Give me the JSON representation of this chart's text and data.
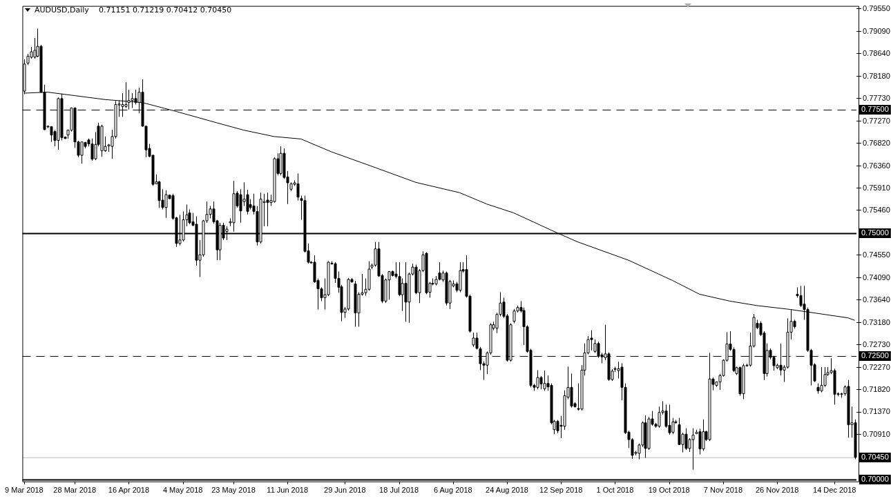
{
  "chart_data": {
    "type": "candlestick",
    "title": "AUDUSD,Daily",
    "subtitle": "0.71151 0.71219 0.70412 0.70450",
    "categories": [
      "9 Mar 2018",
      null,
      null,
      null,
      null,
      null,
      null,
      null,
      null,
      null,
      null,
      null,
      null,
      null,
      null,
      "28 Mar 2018",
      null,
      null,
      null,
      null,
      null,
      null,
      null,
      null,
      null,
      null,
      null,
      null,
      null,
      null,
      null,
      "16 Apr 2018",
      null,
      null,
      null,
      null,
      null,
      null,
      null,
      null,
      null,
      null,
      null,
      null,
      null,
      null,
      null,
      "4 May 2018",
      null,
      null,
      null,
      null,
      null,
      null,
      null,
      null,
      null,
      null,
      null,
      null,
      null,
      null,
      "23 May 2018",
      null,
      null,
      null,
      null,
      null,
      null,
      null,
      null,
      null,
      null,
      null,
      null,
      null,
      null,
      null,
      "11 Jun 2018",
      null,
      null,
      null,
      null,
      null,
      null,
      null,
      null,
      null,
      null,
      null,
      null,
      null,
      null,
      null,
      null,
      "29 Jun 2018",
      null,
      null,
      null,
      null,
      null,
      null,
      null,
      null,
      null,
      null,
      null,
      null,
      null,
      null,
      null,
      "18 Jul 2018",
      null,
      null,
      null,
      null,
      null,
      null,
      null,
      null,
      null,
      null,
      null,
      null,
      null,
      null,
      null,
      "6 Aug 2018",
      null,
      null,
      null,
      null,
      null,
      null,
      null,
      null,
      null,
      null,
      null,
      null,
      null,
      null,
      null,
      "24 Aug 2018",
      null,
      null,
      null,
      null,
      null,
      null,
      null,
      null,
      null,
      null,
      null,
      null,
      null,
      null,
      null,
      "12 Sep 2018",
      null,
      null,
      null,
      null,
      null,
      null,
      null,
      null,
      null,
      null,
      null,
      null,
      null,
      null,
      null,
      "1 Oct 2018",
      null,
      null,
      null,
      null,
      null,
      null,
      null,
      null,
      null,
      null,
      null,
      null,
      null,
      null,
      null,
      "19 Oct 2018",
      null,
      null,
      null,
      null,
      null,
      null,
      null,
      null,
      null,
      null,
      null,
      null,
      null,
      null,
      null,
      "7 Nov 2018",
      null,
      null,
      null,
      null,
      null,
      null,
      null,
      null,
      null,
      null,
      null,
      null,
      null,
      null,
      null,
      "26 Nov 2018",
      null,
      null,
      null,
      null,
      null,
      null,
      null,
      null,
      null,
      null,
      null,
      null,
      null,
      null,
      null,
      null,
      "14 Dec 2018",
      null,
      null,
      null,
      null,
      null,
      null
    ],
    "ohlc": [
      [
        0.7788,
        0.7853,
        0.7782,
        0.7843
      ],
      [
        0.7845,
        0.7864,
        0.7841,
        0.7859
      ],
      [
        0.7857,
        0.7878,
        0.7854,
        0.7868
      ],
      [
        0.7857,
        0.7896,
        0.7854,
        0.7871
      ],
      [
        0.7859,
        0.7915,
        0.7857,
        0.7879
      ],
      [
        0.7879,
        0.7882,
        0.7784,
        0.7786
      ],
      [
        0.7786,
        0.7801,
        0.7709,
        0.771
      ],
      [
        0.7716,
        0.7718,
        0.7713,
        0.7717
      ],
      [
        0.7716,
        0.7717,
        0.7685,
        0.7699
      ],
      [
        0.7706,
        0.7709,
        0.7676,
        0.7688
      ],
      [
        0.7688,
        0.7775,
        0.7669,
        0.7773
      ],
      [
        0.7773,
        0.7783,
        0.7688,
        0.7694
      ],
      [
        0.7695,
        0.7696,
        0.7691,
        0.7692
      ],
      [
        0.7699,
        0.771,
        0.7692,
        0.7709
      ],
      [
        0.7709,
        0.7755,
        0.7706,
        0.7754
      ],
      [
        0.7754,
        0.7755,
        0.7673,
        0.7685
      ],
      [
        0.7685,
        0.7687,
        0.7654,
        0.7658
      ],
      [
        0.7658,
        0.7685,
        0.7641,
        0.7685
      ],
      [
        0.7684,
        0.7685,
        0.7672,
        0.7676
      ],
      [
        0.7689,
        0.7692,
        0.7676,
        0.7681
      ],
      [
        0.7681,
        0.7692,
        0.7647,
        0.765
      ],
      [
        0.7651,
        0.7705,
        0.7648,
        0.768
      ],
      [
        0.7717,
        0.7724,
        0.7676,
        0.768
      ],
      [
        0.7667,
        0.772,
        0.7655,
        0.7717
      ],
      [
        0.7667,
        0.7696,
        0.7665,
        0.7676
      ],
      [
        0.7677,
        0.7681,
        0.7665,
        0.7679
      ],
      [
        0.7676,
        0.771,
        0.7651,
        0.7696
      ],
      [
        0.7696,
        0.7768,
        0.7692,
        0.7761
      ],
      [
        0.776,
        0.7769,
        0.7736,
        0.7762
      ],
      [
        0.7757,
        0.7784,
        0.7736,
        0.7761
      ],
      [
        0.7757,
        0.7806,
        0.7754,
        0.7761
      ],
      [
        0.7765,
        0.7791,
        0.7751,
        0.7769
      ],
      [
        0.7769,
        0.7784,
        0.7754,
        0.7773
      ],
      [
        0.7773,
        0.7791,
        0.7761,
        0.7765
      ],
      [
        0.7765,
        0.7795,
        0.7743,
        0.7786
      ],
      [
        0.7786,
        0.7812,
        0.7716,
        0.7717
      ],
      [
        0.7717,
        0.7718,
        0.7654,
        0.7669
      ],
      [
        0.7672,
        0.7681,
        0.7654,
        0.7656
      ],
      [
        0.7658,
        0.7659,
        0.7596,
        0.7599
      ],
      [
        0.76,
        0.7619,
        0.7599,
        0.7604
      ],
      [
        0.7604,
        0.7606,
        0.7551,
        0.7566
      ],
      [
        0.7567,
        0.7589,
        0.7548,
        0.7552
      ],
      [
        0.7552,
        0.7587,
        0.7531,
        0.7578
      ],
      [
        0.7577,
        0.7578,
        0.7569,
        0.757
      ],
      [
        0.7576,
        0.758,
        0.7527,
        0.753
      ],
      [
        0.7531,
        0.7533,
        0.7472,
        0.7479
      ],
      [
        0.7479,
        0.7537,
        0.7475,
        0.7486
      ],
      [
        0.7486,
        0.7544,
        0.7483,
        0.7527
      ],
      [
        0.7527,
        0.7558,
        0.7514,
        0.7537
      ],
      [
        0.7541,
        0.7548,
        0.7518,
        0.7521
      ],
      [
        0.7523,
        0.7541,
        0.7514,
        0.7516
      ],
      [
        0.7518,
        0.7534,
        0.7434,
        0.7445
      ],
      [
        0.7445,
        0.7486,
        0.7411,
        0.7456
      ],
      [
        0.7456,
        0.7527,
        0.7452,
        0.7525
      ],
      [
        0.7525,
        0.7564,
        0.7521,
        0.7538
      ],
      [
        0.7538,
        0.7555,
        0.753,
        0.7549
      ],
      [
        0.7549,
        0.7564,
        0.7519,
        0.7523
      ],
      [
        0.7525,
        0.7527,
        0.7445,
        0.7466
      ],
      [
        0.7466,
        0.7521,
        0.7445,
        0.7516
      ],
      [
        0.7516,
        0.7521,
        0.7486,
        0.749
      ],
      [
        0.7503,
        0.7514,
        0.7486,
        0.7508
      ],
      [
        0.7521,
        0.753,
        0.7514,
        0.7523
      ],
      [
        0.7521,
        0.7606,
        0.7503,
        0.758
      ],
      [
        0.7581,
        0.7585,
        0.7552,
        0.7555
      ],
      [
        0.7578,
        0.7589,
        0.7521,
        0.7545
      ],
      [
        0.7564,
        0.7603,
        0.7555,
        0.7569
      ],
      [
        0.7578,
        0.7588,
        0.7538,
        0.7544
      ],
      [
        0.7558,
        0.7569,
        0.7548,
        0.7552
      ],
      [
        0.7555,
        0.758,
        0.7538,
        0.7544
      ],
      [
        0.7544,
        0.7555,
        0.7475,
        0.7482
      ],
      [
        0.7482,
        0.7582,
        0.7479,
        0.7569
      ],
      [
        0.7562,
        0.758,
        0.7514,
        0.7564
      ],
      [
        0.7567,
        0.7582,
        0.7514,
        0.7562
      ],
      [
        0.7562,
        0.7578,
        0.7555,
        0.7566
      ],
      [
        0.7564,
        0.7654,
        0.7562,
        0.7651
      ],
      [
        0.7651,
        0.7662,
        0.7617,
        0.7621
      ],
      [
        0.7621,
        0.7676,
        0.7617,
        0.7662
      ],
      [
        0.7662,
        0.7672,
        0.761,
        0.7613
      ],
      [
        0.7614,
        0.7626,
        0.7559,
        0.7602
      ],
      [
        0.7589,
        0.7603,
        0.7585,
        0.76
      ],
      [
        0.7599,
        0.7607,
        0.7596,
        0.7602
      ],
      [
        0.76,
        0.7621,
        0.7566,
        0.7573
      ],
      [
        0.757,
        0.7576,
        0.7527,
        0.7566
      ],
      [
        0.7566,
        0.7576,
        0.7461,
        0.7463
      ],
      [
        0.7464,
        0.7479,
        0.7438,
        0.7441
      ],
      [
        0.7441,
        0.7443,
        0.7438,
        0.744
      ],
      [
        0.7441,
        0.7455,
        0.7399,
        0.7401
      ],
      [
        0.7404,
        0.7408,
        0.7345,
        0.7387
      ],
      [
        0.7387,
        0.739,
        0.7362,
        0.7369
      ],
      [
        0.7369,
        0.7408,
        0.7345,
        0.7375
      ],
      [
        0.7375,
        0.7443,
        0.7372,
        0.7441
      ],
      [
        0.7439,
        0.7443,
        0.7436,
        0.7438
      ],
      [
        0.7438,
        0.7441,
        0.7399,
        0.7408
      ],
      [
        0.7408,
        0.7422,
        0.7379,
        0.739
      ],
      [
        0.7391,
        0.7395,
        0.7321,
        0.7339
      ],
      [
        0.7339,
        0.735,
        0.7328,
        0.7346
      ],
      [
        0.7346,
        0.7409,
        0.7343,
        0.7406
      ],
      [
        0.7406,
        0.7409,
        0.7399,
        0.7401
      ],
      [
        0.7397,
        0.7403,
        0.731,
        0.7338
      ],
      [
        0.7338,
        0.738,
        0.731,
        0.7376
      ],
      [
        0.7376,
        0.7417,
        0.7373,
        0.7379
      ],
      [
        0.7379,
        0.7408,
        0.7373,
        0.7386
      ],
      [
        0.7386,
        0.7443,
        0.7383,
        0.7427
      ],
      [
        0.7431,
        0.7438,
        0.7427,
        0.7435
      ],
      [
        0.7435,
        0.7482,
        0.7432,
        0.7468
      ],
      [
        0.7468,
        0.7482,
        0.7411,
        0.7413
      ],
      [
        0.7414,
        0.7417,
        0.7358,
        0.7362
      ],
      [
        0.7362,
        0.7408,
        0.7358,
        0.7405
      ],
      [
        0.7405,
        0.7423,
        0.7365,
        0.7422
      ],
      [
        0.7422,
        0.7424,
        0.7412,
        0.7414
      ],
      [
        0.7417,
        0.7441,
        0.7408,
        0.7412
      ],
      [
        0.7412,
        0.7441,
        0.7372,
        0.7375
      ],
      [
        0.7375,
        0.7408,
        0.7342,
        0.7398
      ],
      [
        0.7398,
        0.7441,
        0.732,
        0.736
      ],
      [
        0.736,
        0.742,
        0.7318,
        0.7417
      ],
      [
        0.7417,
        0.7438,
        0.7414,
        0.7431
      ],
      [
        0.7431,
        0.7436,
        0.7376,
        0.7379
      ],
      [
        0.7379,
        0.7427,
        0.7358,
        0.7424
      ],
      [
        0.7424,
        0.7463,
        0.7421,
        0.7456
      ],
      [
        0.7459,
        0.7461,
        0.7376,
        0.7379
      ],
      [
        0.738,
        0.7401,
        0.7369,
        0.7398
      ],
      [
        0.7398,
        0.7408,
        0.7394,
        0.7397
      ],
      [
        0.7397,
        0.7413,
        0.7394,
        0.7406
      ],
      [
        0.7419,
        0.7441,
        0.7404,
        0.7406
      ],
      [
        0.7405,
        0.7424,
        0.7401,
        0.7419
      ],
      [
        0.7419,
        0.7422,
        0.7353,
        0.7358
      ],
      [
        0.7358,
        0.7405,
        0.7346,
        0.7402
      ],
      [
        0.7393,
        0.7404,
        0.739,
        0.7397
      ],
      [
        0.7397,
        0.7401,
        0.738,
        0.7384
      ],
      [
        0.7384,
        0.7441,
        0.738,
        0.7424
      ],
      [
        0.7426,
        0.7441,
        0.742,
        0.7423
      ],
      [
        0.7426,
        0.7455,
        0.7369,
        0.7372
      ],
      [
        0.7372,
        0.7375,
        0.7298,
        0.7301
      ],
      [
        0.7273,
        0.7298,
        0.7269,
        0.7287
      ],
      [
        0.7287,
        0.7298,
        0.7264,
        0.7266
      ],
      [
        0.7265,
        0.7269,
        0.7222,
        0.7235
      ],
      [
        0.7235,
        0.724,
        0.7202,
        0.7232
      ],
      [
        0.7232,
        0.726,
        0.7214,
        0.7257
      ],
      [
        0.7257,
        0.7317,
        0.7253,
        0.7314
      ],
      [
        0.7307,
        0.732,
        0.7303,
        0.7314
      ],
      [
        0.7307,
        0.7338,
        0.7297,
        0.7335
      ],
      [
        0.7335,
        0.738,
        0.7331,
        0.7358
      ],
      [
        0.736,
        0.7369,
        0.7328,
        0.7331
      ],
      [
        0.7332,
        0.7336,
        0.7239,
        0.7242
      ],
      [
        0.7242,
        0.7317,
        0.7239,
        0.7314
      ],
      [
        0.7321,
        0.7346,
        0.7317,
        0.7342
      ],
      [
        0.7342,
        0.7353,
        0.7339,
        0.7349
      ],
      [
        0.7349,
        0.7362,
        0.7339,
        0.7342
      ],
      [
        0.7343,
        0.7349,
        0.7273,
        0.731
      ],
      [
        0.731,
        0.7313,
        0.7257,
        0.726
      ],
      [
        0.7262,
        0.7265,
        0.7187,
        0.7191
      ],
      [
        0.7191,
        0.7194,
        0.718,
        0.7187
      ],
      [
        0.7187,
        0.7222,
        0.7183,
        0.7207
      ],
      [
        0.7207,
        0.721,
        0.7183,
        0.7194
      ],
      [
        0.7184,
        0.7221,
        0.718,
        0.7195
      ],
      [
        0.7195,
        0.7211,
        0.718,
        0.7188
      ],
      [
        0.7191,
        0.7195,
        0.7112,
        0.7115
      ],
      [
        0.7101,
        0.7121,
        0.7092,
        0.7118
      ],
      [
        0.7118,
        0.7121,
        0.7094,
        0.7099
      ],
      [
        0.711,
        0.7129,
        0.7084,
        0.7108
      ],
      [
        0.7108,
        0.7181,
        0.7101,
        0.717
      ],
      [
        0.7167,
        0.7229,
        0.7163,
        0.7187
      ],
      [
        0.7187,
        0.7215,
        0.7146,
        0.7149
      ],
      [
        0.7154,
        0.7157,
        0.7146,
        0.7148
      ],
      [
        0.7144,
        0.7195,
        0.714,
        0.7143
      ],
      [
        0.7143,
        0.7232,
        0.714,
        0.7222
      ],
      [
        0.7222,
        0.7276,
        0.7211,
        0.7257
      ],
      [
        0.7257,
        0.7291,
        0.7254,
        0.7284
      ],
      [
        0.7287,
        0.7303,
        0.7262,
        0.7284
      ],
      [
        0.726,
        0.7284,
        0.7257,
        0.7276
      ],
      [
        0.7276,
        0.728,
        0.7247,
        0.725
      ],
      [
        0.7253,
        0.7257,
        0.7236,
        0.7249
      ],
      [
        0.7247,
        0.7314,
        0.7242,
        0.7255
      ],
      [
        0.7255,
        0.7258,
        0.72,
        0.7203
      ],
      [
        0.7203,
        0.7224,
        0.72,
        0.722
      ],
      [
        0.7225,
        0.7229,
        0.7218,
        0.7224
      ],
      [
        0.7221,
        0.7239,
        0.7205,
        0.7225
      ],
      [
        0.7228,
        0.7236,
        0.7161,
        0.7187
      ],
      [
        0.7187,
        0.7195,
        0.7092,
        0.7095
      ],
      [
        0.7096,
        0.7099,
        0.7064,
        0.7081
      ],
      [
        0.7081,
        0.7084,
        0.7042,
        0.7049
      ],
      [
        0.7053,
        0.7058,
        0.7049,
        0.7055
      ],
      [
        0.7053,
        0.7073,
        0.7041,
        0.707
      ],
      [
        0.707,
        0.7118,
        0.7066,
        0.7115
      ],
      [
        0.7115,
        0.713,
        0.7044,
        0.7063
      ],
      [
        0.7063,
        0.7127,
        0.706,
        0.7123
      ],
      [
        0.7123,
        0.7139,
        0.7109,
        0.7112
      ],
      [
        0.7112,
        0.7115,
        0.7105,
        0.7108
      ],
      [
        0.7108,
        0.7148,
        0.7105,
        0.7136
      ],
      [
        0.7136,
        0.7159,
        0.7132,
        0.7139
      ],
      [
        0.7139,
        0.7152,
        0.7105,
        0.7108
      ],
      [
        0.711,
        0.7152,
        0.7091,
        0.7095
      ],
      [
        0.7096,
        0.7125,
        0.7092,
        0.7117
      ],
      [
        0.7117,
        0.7121,
        0.7113,
        0.7117
      ],
      [
        0.7111,
        0.7125,
        0.707,
        0.7071
      ],
      [
        0.7071,
        0.7095,
        0.7055,
        0.7092
      ],
      [
        0.7092,
        0.7104,
        0.706,
        0.7063
      ],
      [
        0.7063,
        0.7084,
        0.7056,
        0.7081
      ],
      [
        0.7081,
        0.7104,
        0.702,
        0.709
      ],
      [
        0.7093,
        0.7101,
        0.7092,
        0.7096
      ],
      [
        0.7097,
        0.7103,
        0.7051,
        0.7062
      ],
      [
        0.7062,
        0.7122,
        0.7058,
        0.7097
      ],
      [
        0.7097,
        0.7099,
        0.7078,
        0.7081
      ],
      [
        0.7081,
        0.7257,
        0.7078,
        0.7204
      ],
      [
        0.7204,
        0.7207,
        0.7181,
        0.7193
      ],
      [
        0.7191,
        0.7199,
        0.7188,
        0.7198
      ],
      [
        0.7198,
        0.7214,
        0.7182,
        0.7211
      ],
      [
        0.7211,
        0.7244,
        0.7209,
        0.7242
      ],
      [
        0.7242,
        0.7299,
        0.7239,
        0.7275
      ],
      [
        0.7275,
        0.7301,
        0.7261,
        0.7264
      ],
      [
        0.7264,
        0.7268,
        0.7218,
        0.7221
      ],
      [
        0.7215,
        0.7229,
        0.7212,
        0.7227
      ],
      [
        0.7227,
        0.7229,
        0.717,
        0.7174
      ],
      [
        0.7174,
        0.7235,
        0.7163,
        0.7231
      ],
      [
        0.7231,
        0.7235,
        0.7229,
        0.7232
      ],
      [
        0.7232,
        0.7298,
        0.7229,
        0.7271
      ],
      [
        0.7271,
        0.7336,
        0.7268,
        0.7329
      ],
      [
        0.7317,
        0.7324,
        0.7305,
        0.7308
      ],
      [
        0.7317,
        0.7321,
        0.7291,
        0.7294
      ],
      [
        0.7297,
        0.7301,
        0.7202,
        0.7215
      ],
      [
        0.7215,
        0.7276,
        0.7209,
        0.7262
      ],
      [
        0.7262,
        0.7266,
        0.7244,
        0.7248
      ],
      [
        0.7248,
        0.7251,
        0.7221,
        0.7231
      ],
      [
        0.7227,
        0.7235,
        0.7224,
        0.7232
      ],
      [
        0.7232,
        0.7276,
        0.7211,
        0.7222
      ],
      [
        0.7222,
        0.7232,
        0.7198,
        0.7228
      ],
      [
        0.7228,
        0.7327,
        0.7225,
        0.7299
      ],
      [
        0.7299,
        0.7345,
        0.7284,
        0.7321
      ],
      [
        0.7321,
        0.7324,
        0.7306,
        0.731
      ],
      [
        0.7376,
        0.739,
        0.7369,
        0.7373
      ],
      [
        0.7373,
        0.7393,
        0.735,
        0.7353
      ],
      [
        0.7356,
        0.7393,
        0.7324,
        0.7345
      ],
      [
        0.7345,
        0.7349,
        0.7259,
        0.7262
      ],
      [
        0.7262,
        0.7265,
        0.7191,
        0.7232
      ],
      [
        0.7233,
        0.7236,
        0.7198,
        0.72
      ],
      [
        0.7187,
        0.7195,
        0.7174,
        0.718
      ],
      [
        0.718,
        0.7228,
        0.7177,
        0.7191
      ],
      [
        0.7191,
        0.7228,
        0.7188,
        0.7213
      ],
      [
        0.7213,
        0.7228,
        0.721,
        0.7217
      ],
      [
        0.7217,
        0.7246,
        0.7214,
        0.7221
      ],
      [
        0.7221,
        0.7225,
        0.7152,
        0.7173
      ],
      [
        0.7174,
        0.7177,
        0.7169,
        0.7173
      ],
      [
        0.7173,
        0.7176,
        0.7166,
        0.7174
      ],
      [
        0.7174,
        0.7191,
        0.717,
        0.7188
      ],
      [
        0.7189,
        0.7202,
        0.7085,
        0.7111
      ],
      [
        0.7111,
        0.7148,
        0.7085,
        0.7115
      ],
      [
        0.71151,
        0.71219,
        0.70412,
        0.7045
      ]
    ],
    "series": [
      {
        "type": "line",
        "color": "#000000",
        "values": [
          0.7784,
          null,
          null,
          null,
          null,
          null,
          null,
          0.7786,
          null,
          null,
          null,
          null,
          null,
          null,
          null,
          0.7779,
          null,
          null,
          null,
          null,
          null,
          null,
          null,
          null,
          0.7771,
          null,
          null,
          null,
          null,
          null,
          null,
          null,
          null,
          null,
          null,
          0.7765,
          null,
          null,
          null,
          null,
          null,
          null,
          null,
          null,
          null,
          0.7747,
          null,
          null,
          null,
          null,
          null,
          null,
          null,
          null,
          null,
          null,
          null,
          0.7724,
          null,
          null,
          null,
          null,
          null,
          null,
          null,
          0.7709,
          null,
          null,
          null,
          null,
          null,
          null,
          null,
          null,
          0.7696,
          null,
          null,
          null,
          null,
          null,
          null,
          null,
          0.7691,
          null,
          null,
          null,
          null,
          null,
          null,
          null,
          null,
          0.7665,
          null,
          null,
          null,
          null,
          null,
          null,
          null,
          null,
          null,
          null,
          null,
          null,
          0.7633,
          null,
          null,
          null,
          null,
          null,
          null,
          null,
          null,
          null,
          null,
          null,
          0.7603,
          null,
          null,
          null,
          null,
          null,
          null,
          null,
          null,
          null,
          null,
          null,
          null,
          0.7582,
          null,
          null,
          null,
          null,
          null,
          null,
          null,
          0.7559,
          null,
          null,
          null,
          null,
          null,
          null,
          null,
          0.7541,
          null,
          null,
          null,
          null,
          null,
          null,
          null,
          null,
          null,
          null,
          null,
          null,
          0.75,
          null,
          null,
          null,
          null,
          null,
          0.7482,
          null,
          null,
          null,
          null,
          null,
          null,
          null,
          null,
          null,
          null,
          null,
          null,
          null,
          null,
          0.7445,
          null,
          null,
          null,
          null,
          null,
          null,
          null,
          null,
          null,
          null,
          null,
          null,
          0.7404,
          null,
          null,
          null,
          null,
          null,
          null,
          null,
          0.7376,
          null,
          null,
          null,
          null,
          null,
          null,
          null,
          null,
          0.7362,
          null,
          null,
          null,
          null,
          null,
          null,
          null,
          0.7353,
          null,
          null,
          null,
          null,
          null,
          null,
          null,
          null,
          null,
          0.7345,
          null,
          null,
          null,
          null,
          null,
          null,
          null,
          null,
          null,
          null,
          null,
          null,
          null,
          null,
          null,
          null,
          0.7328,
          null,
          0.7323
        ]
      }
    ],
    "ref_lines": [
      {
        "axis": "y",
        "value": 0.775,
        "label": "0.77500",
        "line_style": "dashed",
        "color": "#000000"
      },
      {
        "axis": "y",
        "value": 0.75,
        "label": "0.75000",
        "line_style": "solid",
        "color": "#000000"
      },
      {
        "axis": "y",
        "value": 0.725,
        "label": "0.72500",
        "line_style": "dashed",
        "color": "#000000"
      },
      {
        "axis": "y",
        "value": 0.7045,
        "label": "0.70450",
        "line_style": "solid",
        "color": "#c0c0c0"
      },
      {
        "axis": "y",
        "value": 0.7,
        "label": "0.70000",
        "line_style": "solid",
        "color": "#000000"
      }
    ],
    "ylim": [
      0.6996,
      0.7961
    ],
    "yticks": [
      {
        "value": 0.7955,
        "label": "0.79550"
      },
      {
        "value": 0.7909,
        "label": "0.79090"
      },
      {
        "value": 0.7864,
        "label": "0.78640"
      },
      {
        "value": 0.7818,
        "label": "0.78180"
      },
      {
        "value": 0.7773,
        "label": "0.77730"
      },
      {
        "value": 0.7727,
        "label": "0.77270"
      },
      {
        "value": 0.7682,
        "label": "0.76820"
      },
      {
        "value": 0.7636,
        "label": "0.76360"
      },
      {
        "value": 0.7591,
        "label": "0.75910"
      },
      {
        "value": 0.7546,
        "label": "0.75460"
      },
      {
        "value": 0.7455,
        "label": "0.74550"
      },
      {
        "value": 0.7409,
        "label": "0.74090"
      },
      {
        "value": 0.7364,
        "label": "0.73640"
      },
      {
        "value": 0.7318,
        "label": "0.73180"
      },
      {
        "value": 0.7273,
        "label": "0.72730"
      },
      {
        "value": 0.7227,
        "label": "0.72270"
      },
      {
        "value": 0.7182,
        "label": "0.71820"
      },
      {
        "value": 0.7137,
        "label": "0.71370"
      },
      {
        "value": 0.7091,
        "label": "0.70910"
      }
    ]
  }
}
